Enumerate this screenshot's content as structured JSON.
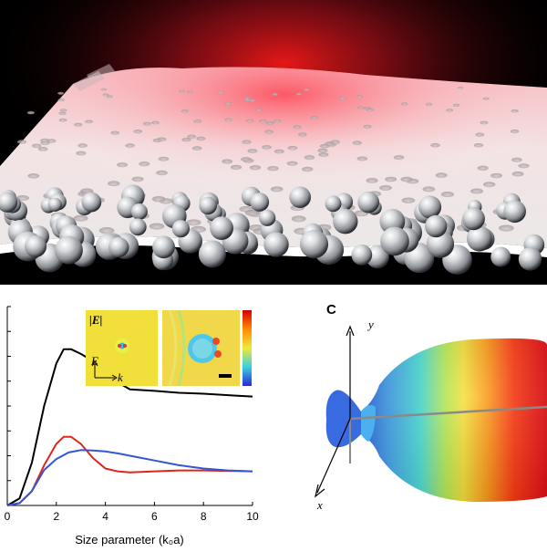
{
  "chart_data": {
    "type": "line",
    "xlabel": "Size parameter (k₀a)",
    "ylabel": "",
    "xlim": [
      0,
      10
    ],
    "ylim": [
      0,
      4.2
    ],
    "xticks": [
      "0",
      "2",
      "4",
      "6",
      "8",
      "10"
    ],
    "grid": false,
    "legend": "none",
    "series": [
      {
        "color": "#000000",
        "x": [
          0,
          0.5,
          1.0,
          1.5,
          2.0,
          2.3,
          2.6,
          3.0,
          3.5,
          4.0,
          4.5,
          5.0,
          6.0,
          7.0,
          8.0,
          9.0,
          10.0
        ],
        "y": [
          0.0,
          0.15,
          0.9,
          2.1,
          3.0,
          3.3,
          3.3,
          3.2,
          3.05,
          2.85,
          2.6,
          2.45,
          2.42,
          2.38,
          2.36,
          2.33,
          2.3
        ]
      },
      {
        "color": "#e0251b",
        "x": [
          0,
          0.5,
          1.0,
          1.5,
          2.0,
          2.3,
          2.6,
          3.0,
          3.5,
          4.0,
          4.5,
          5.0,
          6.0,
          7.0,
          8.0,
          9.0,
          10.0
        ],
        "y": [
          0.0,
          0.05,
          0.3,
          0.85,
          1.3,
          1.45,
          1.45,
          1.3,
          1.0,
          0.78,
          0.72,
          0.7,
          0.72,
          0.74,
          0.74,
          0.73,
          0.72
        ]
      },
      {
        "color": "#2f57d6",
        "x": [
          0,
          0.5,
          1.0,
          1.5,
          2.0,
          2.5,
          3.0,
          3.5,
          4.0,
          4.5,
          5.0,
          6.0,
          7.0,
          8.0,
          9.0,
          10.0
        ],
        "y": [
          0.0,
          0.05,
          0.3,
          0.75,
          0.98,
          1.12,
          1.17,
          1.16,
          1.14,
          1.1,
          1.05,
          0.95,
          0.85,
          0.78,
          0.74,
          0.72
        ]
      }
    ],
    "insets": [
      {
        "label": "|E|",
        "field_label": "E",
        "wave_label": "k"
      }
    ]
  },
  "panel_c": {
    "letter": "C",
    "axis_y": "y",
    "axis_x": "x"
  }
}
